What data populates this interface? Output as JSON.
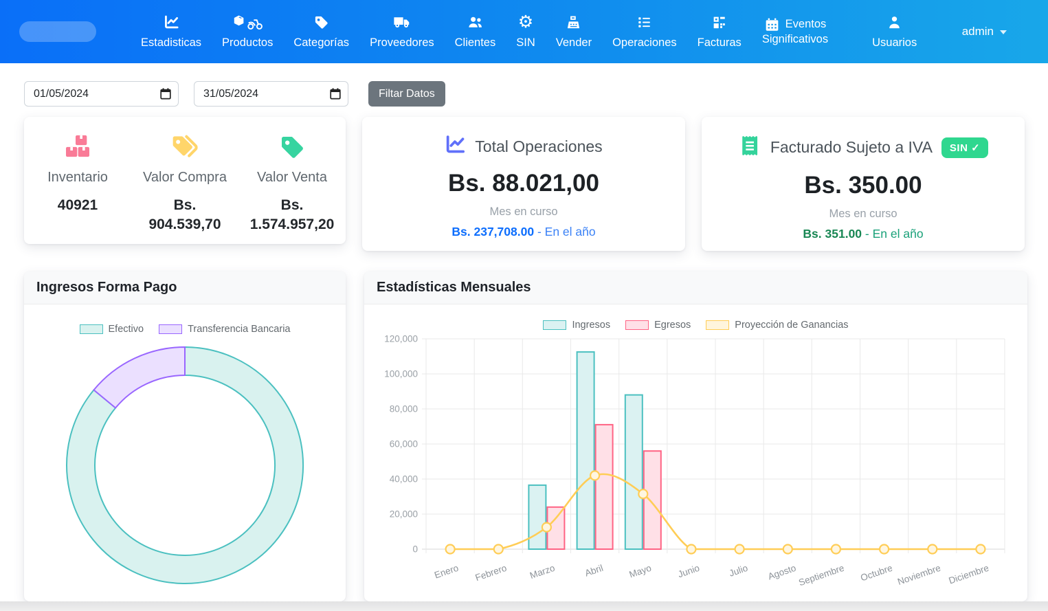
{
  "navbar": {
    "items": [
      {
        "label": "Estadisticas",
        "icon": "chart-line-icon"
      },
      {
        "label": "Productos",
        "icon": "box-motorcycle-icon"
      },
      {
        "label": "Categorías",
        "icon": "tag-icon"
      },
      {
        "label": "Proveedores",
        "icon": "truck-icon"
      },
      {
        "label": "Clientes",
        "icon": "users-icon"
      },
      {
        "label": "SIN",
        "icon": "gear-icon"
      },
      {
        "label": "Vender",
        "icon": "cash-register-icon"
      },
      {
        "label": "Operaciones",
        "icon": "list-icon"
      },
      {
        "label": "Facturas",
        "icon": "grid-icon"
      },
      {
        "label": "Eventos Significativos",
        "icon": "calendar-icon",
        "two_line": true,
        "line1": "Eventos",
        "line2": "Significativos"
      },
      {
        "label": "Usuarios",
        "icon": "user-icon"
      }
    ],
    "user_menu": {
      "label": "admin"
    }
  },
  "filters": {
    "date_from": "01/05/2024",
    "date_to": "31/05/2024",
    "filter_button": "Filtar Datos"
  },
  "stats_card": {
    "items": [
      {
        "label": "Inventario",
        "icon": "boxes-icon",
        "icon_color": "#f97b97",
        "currency": "",
        "amount": "40921"
      },
      {
        "label": "Valor Compra",
        "icon": "tags-icon",
        "icon_color": "#ffd56a",
        "currency": "Bs.",
        "amount": "904.539,70"
      },
      {
        "label": "Valor Venta",
        "icon": "tag-icon",
        "icon_color": "#37d4a0",
        "currency": "Bs.",
        "amount": "1.574.957,20"
      }
    ]
  },
  "operations_card": {
    "icon": "chart-line-icon",
    "icon_color": "#6070fa",
    "title": "Total Operaciones",
    "amount": "Bs. 88.021,00",
    "period": "Mes en curso",
    "year_amount": "Bs. 237,708.00",
    "year_label": "- En el año"
  },
  "iva_card": {
    "icon": "receipt-icon",
    "icon_color": "#34d39b",
    "title": "Facturado Sujeto a IVA",
    "badge": "SIN ✓",
    "amount": "Bs. 350.00",
    "period": "Mes en curso",
    "year_amount": "Bs. 351.00",
    "year_label": "- En el año"
  },
  "chart_data": [
    {
      "type": "pie",
      "donut": true,
      "title": "Ingresos Forma Pago",
      "labels": [
        "Efectivo",
        "Transferencia Bancaria"
      ],
      "values": [
        86,
        14
      ],
      "value_unit": "percent-estimated-from-arc",
      "colors": {
        "border": [
          "#4bc0c0",
          "#9966ff"
        ],
        "fill": [
          "#d9f2ef",
          "#ebe0ff"
        ]
      },
      "legend_position": "top"
    },
    {
      "type": "bar",
      "title": "Estadísticas Mensuales",
      "categories": [
        "Enero",
        "Febrero",
        "Marzo",
        "Abril",
        "Mayo",
        "Junio",
        "Julio",
        "Agosto",
        "Septiembre",
        "Octubre",
        "Noviembre",
        "Diciembre"
      ],
      "series": [
        {
          "name": "Ingresos",
          "kind": "bar",
          "values": [
            0,
            0,
            36500,
            112500,
            88000,
            0,
            0,
            0,
            0,
            0,
            0,
            0
          ],
          "border": "#4bc0c0",
          "fill": "#dbf2f2"
        },
        {
          "name": "Egresos",
          "kind": "bar",
          "values": [
            0,
            0,
            24000,
            71000,
            56000,
            0,
            0,
            0,
            0,
            0,
            0,
            0
          ],
          "border": "#ff6384",
          "fill": "#ffe0e7"
        },
        {
          "name": "Proyección de Ganancias",
          "kind": "line",
          "values": [
            0,
            0,
            12500,
            42000,
            31500,
            0,
            0,
            0,
            0,
            0,
            0,
            0
          ],
          "border": "#ffcd56",
          "fill": "#fff5dd"
        }
      ],
      "ylim": [
        0,
        120000
      ],
      "ytick_step": 20000,
      "grid": true,
      "legend_position": "top"
    }
  ],
  "theme": {
    "navbar_gradient_start": "#0a6ff8",
    "navbar_gradient_end": "#18a7e9",
    "badge_green": "#2fd78f",
    "accent_blue": "#0d6efd",
    "accent_green": "#198754",
    "button_gray": "#6c757d"
  }
}
